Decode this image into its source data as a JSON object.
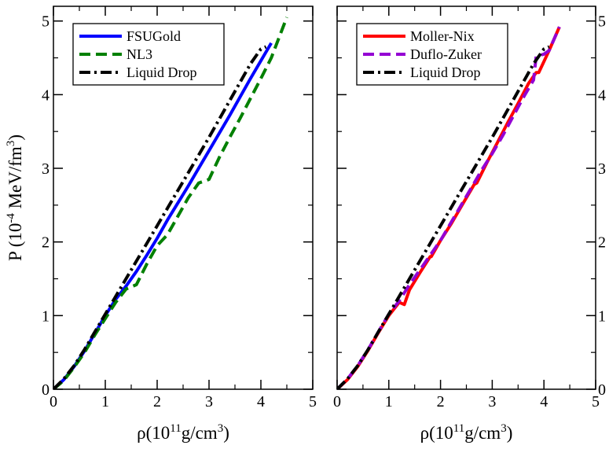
{
  "chart_data": [
    {
      "type": "line",
      "title": "",
      "xlabel": {
        "base": "ρ(10",
        "sup1": "11",
        "mid": "g/cm",
        "sup2": "3",
        "end": ")"
      },
      "ylabel": {
        "base": "P (10",
        "sup1": "-4",
        "mid": " MeV/fm",
        "sup2": "3",
        "end": ")"
      },
      "xlim": [
        0,
        5
      ],
      "ylim": [
        0,
        5.2
      ],
      "xticks": [
        "0",
        "1",
        "2",
        "3",
        "4",
        "5"
      ],
      "yticks": [
        "0",
        "1",
        "2",
        "3",
        "4",
        "5"
      ],
      "yticks_side": "left",
      "grid": false,
      "legend": "top-left",
      "series": [
        {
          "name": "FSUGold",
          "color": "#0000ff",
          "dash": "solid",
          "x": [
            0,
            0.2,
            0.4,
            0.6,
            0.8,
            1.0,
            1.2,
            1.4,
            1.6,
            1.8,
            2.0,
            2.2,
            2.4,
            2.6,
            2.8,
            3.0,
            3.2,
            3.4,
            3.6,
            3.8,
            4.0,
            4.2
          ],
          "y": [
            0,
            0.13,
            0.31,
            0.52,
            0.76,
            1.0,
            1.22,
            1.4,
            1.6,
            1.82,
            2.05,
            2.3,
            2.53,
            2.76,
            3.0,
            3.24,
            3.48,
            3.72,
            3.97,
            4.22,
            4.46,
            4.7
          ]
        },
        {
          "name": "NL3",
          "color": "#008000",
          "dash": "dash",
          "x": [
            0,
            0.2,
            0.4,
            0.6,
            0.8,
            1.0,
            1.2,
            1.4,
            1.6,
            1.8,
            2.0,
            2.2,
            2.4,
            2.6,
            2.8,
            3.0,
            3.2,
            3.4,
            3.6,
            3.8,
            4.0,
            4.2,
            4.5
          ],
          "y": [
            0,
            0.12,
            0.3,
            0.5,
            0.74,
            0.96,
            1.18,
            1.36,
            1.42,
            1.7,
            1.95,
            2.1,
            2.35,
            2.6,
            2.8,
            2.85,
            3.15,
            3.42,
            3.68,
            3.95,
            4.22,
            4.5,
            5.05
          ]
        },
        {
          "name": "Liquid Drop",
          "color": "#000000",
          "dash": "dashdot",
          "x": [
            0,
            0.2,
            0.4,
            0.6,
            0.8,
            1.0,
            1.2,
            1.4,
            1.6,
            1.8,
            2.0,
            2.2,
            2.4,
            2.6,
            2.8,
            3.0,
            3.2,
            3.4,
            3.6,
            3.8,
            4.0,
            4.1
          ],
          "y": [
            0,
            0.14,
            0.32,
            0.54,
            0.78,
            1.02,
            1.26,
            1.5,
            1.74,
            1.98,
            2.22,
            2.46,
            2.7,
            2.94,
            3.18,
            3.42,
            3.67,
            3.92,
            4.17,
            4.42,
            4.62,
            4.65
          ]
        }
      ]
    },
    {
      "type": "line",
      "title": "",
      "xlabel": {
        "base": "ρ(10",
        "sup1": "11",
        "mid": "g/cm",
        "sup2": "3",
        "end": ")"
      },
      "ylabel": null,
      "xlim": [
        0,
        5
      ],
      "ylim": [
        0,
        5.2
      ],
      "xticks": [
        "0",
        "1",
        "2",
        "3",
        "4",
        "5"
      ],
      "yticks": [
        "0",
        "1",
        "2",
        "3",
        "4",
        "5"
      ],
      "yticks_side": "right",
      "grid": false,
      "legend": "top-left",
      "series": [
        {
          "name": "Moller-Nix",
          "color": "#ff0000",
          "dash": "solid",
          "x": [
            0,
            0.2,
            0.4,
            0.6,
            0.8,
            1.0,
            1.2,
            1.3,
            1.4,
            1.6,
            1.8,
            1.82,
            2.0,
            2.2,
            2.4,
            2.6,
            2.65,
            2.7,
            2.9,
            3.1,
            3.3,
            3.5,
            3.7,
            3.85,
            3.9,
            4.1,
            4.3
          ],
          "y": [
            0,
            0.13,
            0.31,
            0.53,
            0.77,
            1.0,
            1.18,
            1.15,
            1.35,
            1.58,
            1.8,
            1.8,
            2.02,
            2.24,
            2.48,
            2.72,
            2.78,
            2.8,
            3.08,
            3.35,
            3.62,
            3.88,
            4.15,
            4.3,
            4.3,
            4.6,
            4.92
          ]
        },
        {
          "name": "Duflo-Zuker",
          "color": "#9400d3",
          "dash": "dash",
          "x": [
            0,
            0.2,
            0.4,
            0.6,
            0.8,
            1.0,
            1.2,
            1.4,
            1.6,
            1.8,
            2.0,
            2.2,
            2.4,
            2.6,
            2.8,
            3.0,
            3.2,
            3.4,
            3.6,
            3.8,
            3.85,
            4.0,
            4.1,
            4.3
          ],
          "y": [
            0,
            0.14,
            0.32,
            0.54,
            0.78,
            1.02,
            1.2,
            1.42,
            1.62,
            1.82,
            2.02,
            2.26,
            2.5,
            2.74,
            2.98,
            3.2,
            3.44,
            3.7,
            3.96,
            4.2,
            4.52,
            4.55,
            4.6,
            4.92
          ]
        },
        {
          "name": "Liquid Drop",
          "color": "#000000",
          "dash": "dashdot",
          "x": [
            0,
            0.2,
            0.4,
            0.6,
            0.8,
            1.0,
            1.2,
            1.4,
            1.6,
            1.8,
            2.0,
            2.2,
            2.4,
            2.6,
            2.8,
            3.0,
            3.2,
            3.4,
            3.6,
            3.8,
            4.0,
            4.1
          ],
          "y": [
            0,
            0.14,
            0.32,
            0.54,
            0.78,
            1.02,
            1.26,
            1.5,
            1.74,
            1.98,
            2.22,
            2.46,
            2.7,
            2.94,
            3.18,
            3.42,
            3.67,
            3.92,
            4.17,
            4.42,
            4.62,
            4.65
          ]
        }
      ]
    }
  ]
}
